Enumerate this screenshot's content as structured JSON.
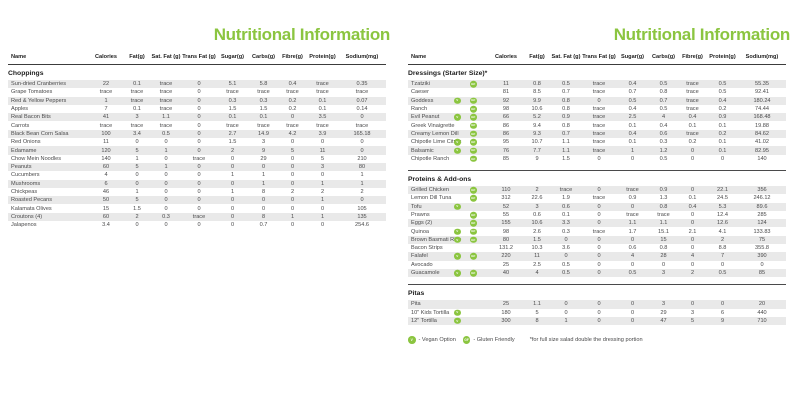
{
  "title": "Nutritional Information",
  "columns": [
    "Name",
    "Calories",
    "Fat(g)",
    "Sat. Fat (g)",
    "Trans Fat (g)",
    "Sugar(g)",
    "Carbs(g)",
    "Fibre(g)",
    "Protein(g)",
    "Sodium(mg)"
  ],
  "colors": {
    "accent_green": "#8BC540",
    "stripe": "#e9e9e9"
  },
  "legend": {
    "vegan_icon": "V",
    "gluten_icon": "GF",
    "vegan_label": "- Vegan Option",
    "gluten_label": "- Gluten Friendly",
    "note": "*for full size salad double the dressing portion"
  },
  "left_panel": {
    "sections": [
      {
        "title": "Choppings",
        "rows": [
          {
            "name": "Sun-dried Cranberries",
            "values": [
              "22",
              "0.1",
              "trace",
              "0",
              "5.1",
              "5.8",
              "0.4",
              "trace",
              "0.35"
            ]
          },
          {
            "name": "Grape Tomatoes",
            "values": [
              "trace",
              "trace",
              "trace",
              "0",
              "trace",
              "trace",
              "trace",
              "trace",
              "trace"
            ]
          },
          {
            "name": "Red & Yellow Peppers",
            "values": [
              "1",
              "trace",
              "trace",
              "0",
              "0.3",
              "0.3",
              "0.2",
              "0.1",
              "0.07"
            ]
          },
          {
            "name": "Apples",
            "values": [
              "7",
              "0.1",
              "trace",
              "0",
              "1.5",
              "1.5",
              "0.2",
              "0.1",
              "0.14"
            ]
          },
          {
            "name": "Real Bacon Bits",
            "values": [
              "41",
              "3",
              "1.1",
              "0",
              "0.1",
              "0.1",
              "0",
              "3.5",
              "0"
            ]
          },
          {
            "name": "Carrots",
            "values": [
              "trace",
              "trace",
              "trace",
              "0",
              "trace",
              "trace",
              "trace",
              "trace",
              "trace"
            ]
          },
          {
            "name": "Black Bean Corn Salsa",
            "values": [
              "100",
              "3.4",
              "0.5",
              "0",
              "2.7",
              "14.9",
              "4.2",
              "3.9",
              "165.18"
            ]
          },
          {
            "name": "Red Onions",
            "values": [
              "11",
              "0",
              "0",
              "0",
              "1.5",
              "3",
              "0",
              "0",
              "0"
            ]
          },
          {
            "name": "Edamame",
            "values": [
              "120",
              "5",
              "1",
              "0",
              "2",
              "9",
              "5",
              "11",
              "0"
            ]
          },
          {
            "name": "Chow Mein Noodles",
            "values": [
              "140",
              "1",
              "0",
              "trace",
              "0",
              "29",
              "0",
              "5",
              "210"
            ]
          },
          {
            "name": "Peanuts",
            "values": [
              "60",
              "5",
              "1",
              "0",
              "0",
              "0",
              "0",
              "3",
              "80"
            ]
          },
          {
            "name": "Cucumbers",
            "values": [
              "4",
              "0",
              "0",
              "0",
              "1",
              "1",
              "0",
              "0",
              "1"
            ]
          },
          {
            "name": "Mushrooms",
            "values": [
              "6",
              "0",
              "0",
              "0",
              "0",
              "1",
              "0",
              "1",
              "1"
            ]
          },
          {
            "name": "Chickpeas",
            "values": [
              "46",
              "1",
              "0",
              "0",
              "1",
              "8",
              "2",
              "2",
              "2"
            ]
          },
          {
            "name": "Roasted Pecans",
            "values": [
              "50",
              "5",
              "0",
              "0",
              "0",
              "0",
              "0",
              "1",
              "0"
            ]
          },
          {
            "name": "Kalamata Olives",
            "values": [
              "15",
              "1.5",
              "0",
              "0",
              "0",
              "0",
              "0",
              "0",
              "105"
            ]
          },
          {
            "name": "Croutons (4)",
            "values": [
              "60",
              "2",
              "0.3",
              "trace",
              "0",
              "8",
              "1",
              "1",
              "135"
            ]
          },
          {
            "name": "Jalapenos",
            "values": [
              "3.4",
              "0",
              "0",
              "0",
              "0",
              "0.7",
              "0",
              "0",
              "254.6"
            ]
          }
        ]
      }
    ]
  },
  "right_panel": {
    "sections": [
      {
        "title": "Dressings (Starter Size)*",
        "rows": [
          {
            "name": "Tzatziki",
            "gluten": true,
            "values": [
              "11",
              "0.8",
              "0.5",
              "trace",
              "0.4",
              "0.5",
              "trace",
              "0.5",
              "55.35"
            ]
          },
          {
            "name": "Caeser",
            "values": [
              "81",
              "8.5",
              "0.7",
              "trace",
              "0.7",
              "0.8",
              "trace",
              "0.5",
              "92.41"
            ]
          },
          {
            "name": "Goddess",
            "vegan": true,
            "gluten": true,
            "values": [
              "92",
              "9.9",
              "0.8",
              "0",
              "0.5",
              "0.7",
              "trace",
              "0.4",
              "180.24"
            ]
          },
          {
            "name": "Ranch",
            "gluten": true,
            "values": [
              "98",
              "10.6",
              "0.8",
              "trace",
              "0.4",
              "0.5",
              "trace",
              "0.2",
              "74.44"
            ]
          },
          {
            "name": "Evil Peanut",
            "vegan": true,
            "gluten": true,
            "values": [
              "66",
              "5.2",
              "0.9",
              "trace",
              "2.5",
              "4",
              "0.4",
              "0.9",
              "168.48"
            ]
          },
          {
            "name": "Greek Vinaigrette",
            "gluten": true,
            "values": [
              "86",
              "9.4",
              "0.8",
              "trace",
              "0.1",
              "0.4",
              "0.1",
              "0.1",
              "19.88"
            ]
          },
          {
            "name": "Creamy Lemon Dill",
            "gluten": true,
            "values": [
              "86",
              "9.3",
              "0.7",
              "trace",
              "0.4",
              "0.6",
              "trace",
              "0.2",
              "84.62"
            ]
          },
          {
            "name": "Chipotle Lime Citrus",
            "vegan": true,
            "gluten": true,
            "values": [
              "95",
              "10.7",
              "1.1",
              "trace",
              "0.1",
              "0.3",
              "0.2",
              "0.1",
              "41.02"
            ]
          },
          {
            "name": "Balsamic",
            "vegan": true,
            "gluten": true,
            "values": [
              "76",
              "7.7",
              "1.1",
              "trace",
              "1",
              "1.2",
              "0",
              "0.1",
              "82.95"
            ]
          },
          {
            "name": "Chipotle Ranch",
            "gluten": true,
            "values": [
              "85",
              "9",
              "1.5",
              "0",
              "0",
              "0.5",
              "0",
              "0",
              "140"
            ]
          }
        ]
      },
      {
        "title": "Proteins & Add-ons",
        "divider": true,
        "rows": [
          {
            "name": "Grilled Chicken",
            "gluten": true,
            "values": [
              "110",
              "2",
              "trace",
              "0",
              "trace",
              "0.9",
              "0",
              "22.1",
              "356"
            ]
          },
          {
            "name": "Lemon Dill Tuna",
            "gluten": true,
            "values": [
              "312",
              "22.6",
              "1.9",
              "trace",
              "0.9",
              "1.3",
              "0.1",
              "24.5",
              "246.12"
            ]
          },
          {
            "name": "Tofu",
            "vegan": true,
            "values": [
              "52",
              "3",
              "0.6",
              "0",
              "0",
              "0.8",
              "0.4",
              "5.3",
              "89.6"
            ]
          },
          {
            "name": "Prawns",
            "gluten": true,
            "values": [
              "55",
              "0.6",
              "0.1",
              "0",
              "trace",
              "trace",
              "0",
              "12.4",
              "285"
            ]
          },
          {
            "name": "Eggs (2)",
            "gluten": true,
            "values": [
              "155",
              "10.6",
              "3.3",
              "0",
              "1.1",
              "1.1",
              "0",
              "12.6",
              "124"
            ]
          },
          {
            "name": "Quinoa",
            "vegan": true,
            "gluten": true,
            "values": [
              "98",
              "2.6",
              "0.3",
              "trace",
              "1.7",
              "15.1",
              "2.1",
              "4.1",
              "133.83"
            ]
          },
          {
            "name": "Brown Basmati Rice",
            "vegan": true,
            "gluten": true,
            "values": [
              "80",
              "1.5",
              "0",
              "0",
              "0",
              "15",
              "0",
              "2",
              "75"
            ]
          },
          {
            "name": "Bacon Strips",
            "values": [
              "131.2",
              "10.3",
              "3.6",
              "0",
              "0.6",
              "0.8",
              "0",
              "8.8",
              "355.8"
            ]
          },
          {
            "name": "Falafel",
            "vegan": true,
            "gluten": true,
            "values": [
              "220",
              "11",
              "0",
              "0",
              "4",
              "28",
              "4",
              "7",
              "390"
            ]
          },
          {
            "name": "Avocado",
            "values": [
              "25",
              "2.5",
              "0.5",
              "0",
              "0",
              "0",
              "0",
              "0",
              "0"
            ]
          },
          {
            "name": "Guacamole",
            "vegan": true,
            "gluten": true,
            "values": [
              "40",
              "4",
              "0.5",
              "0",
              "0.5",
              "3",
              "2",
              "0.5",
              "85"
            ]
          }
        ]
      },
      {
        "title": "Pitas",
        "divider": true,
        "rows": [
          {
            "name": "Pita",
            "values": [
              "25",
              "1.1",
              "0",
              "0",
              "0",
              "3",
              "0",
              "0",
              "20"
            ]
          },
          {
            "name": "10\" Kids Tortilla",
            "vegan": true,
            "values": [
              "180",
              "5",
              "0",
              "0",
              "0",
              "29",
              "3",
              "6",
              "440"
            ]
          },
          {
            "name": "12\" Tortilla",
            "vegan": true,
            "values": [
              "300",
              "8",
              "1",
              "0",
              "0",
              "47",
              "5",
              "9",
              "710"
            ]
          }
        ]
      }
    ]
  }
}
